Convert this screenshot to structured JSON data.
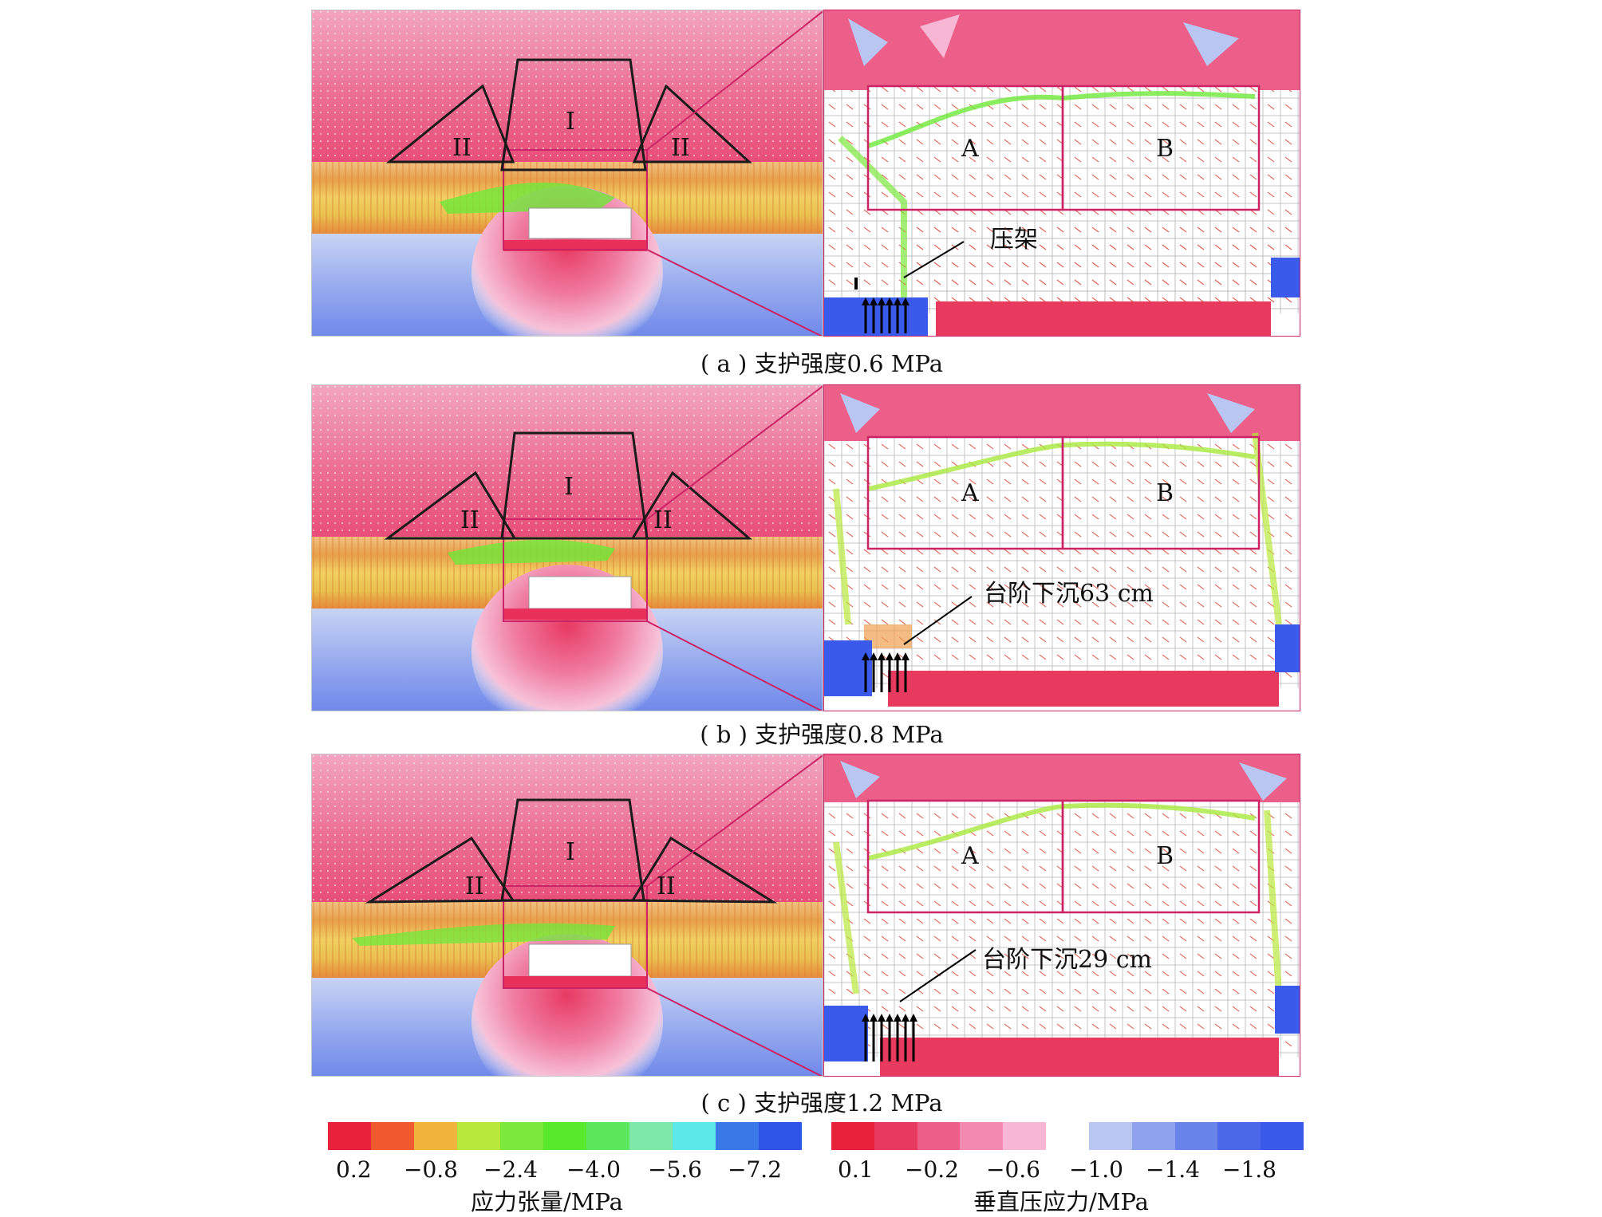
{
  "panels": [
    {
      "zones": [
        "I",
        "II",
        "II"
      ],
      "inset_labels": [
        "A",
        "B"
      ],
      "annotation": "压架",
      "caption": "( a ) 支护强度0.6 MPa"
    },
    {
      "zones": [
        "I",
        "II",
        "II"
      ],
      "inset_labels": [
        "A",
        "B"
      ],
      "annotation": "台阶下沉63 cm",
      "caption": "( b ) 支护强度0.8 MPa"
    },
    {
      "zones": [
        "I",
        "II",
        "II"
      ],
      "inset_labels": [
        "A",
        "B"
      ],
      "annotation": "台阶下沉29 cm",
      "caption": "( c ) 支护强度1.2 MPa"
    }
  ],
  "legend_tension": {
    "title": "应力张量/MPa",
    "ticks": [
      "0.2",
      "−0.8",
      "−2.4",
      "−4.0",
      "−5.6",
      "−7.2"
    ],
    "colors": [
      "#e8223a",
      "#f05a2e",
      "#f0b33c",
      "#b8e83c",
      "#7ce83c",
      "#58e82c",
      "#5ce85c",
      "#7ee8a8",
      "#5ce8e8",
      "#3a78e8",
      "#2e55e8"
    ]
  },
  "legend_vertical": {
    "title": "垂直压应力/MPa",
    "ticks": [
      "0.1",
      "−0.2",
      "−0.6",
      "−1.0",
      "−1.4",
      "−1.8"
    ],
    "colors": [
      "#e8223a",
      "#e83a5e",
      "#ec5f88",
      "#f28ab2",
      "#f7b6d4",
      "#ffffff",
      "#b9c6f2",
      "#8ea2ee",
      "#6883ea",
      "#4a68e8",
      "#3a5aec"
    ]
  }
}
